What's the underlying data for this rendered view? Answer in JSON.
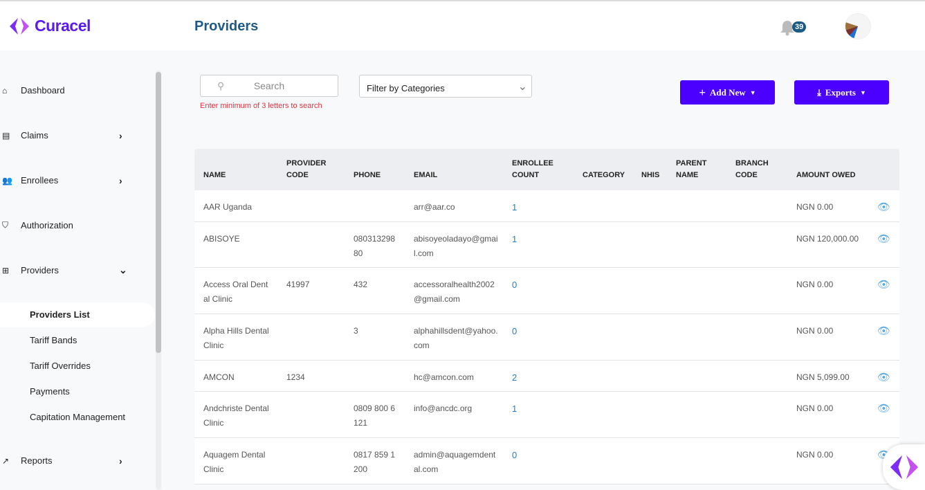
{
  "brand": {
    "name": "Curacel",
    "accent": "#4b00ff"
  },
  "header": {
    "title": "Providers",
    "notification_count": "39"
  },
  "sidebar": {
    "items": [
      {
        "label": "Dashboard",
        "icon": "home-icon"
      },
      {
        "label": "Claims",
        "icon": "clipboard-icon"
      },
      {
        "label": "Enrollees",
        "icon": "users-icon"
      },
      {
        "label": "Authorization",
        "icon": "shield-icon"
      },
      {
        "label": "Providers",
        "icon": "hospital-icon"
      },
      {
        "label": "Reports",
        "icon": "trend-icon"
      }
    ],
    "sub_items": [
      "Providers List",
      "Tariff Bands",
      "Tariff Overrides",
      "Payments",
      "Capitation Management"
    ]
  },
  "toolbar": {
    "search_placeholder": "Search",
    "search_hint": "Enter minimum of 3 letters to search",
    "filter_label": "Filter by Categories",
    "add_new": "Add New",
    "exports": "Exports"
  },
  "table": {
    "columns": [
      "NAME",
      "PROVIDER CODE",
      "PHONE",
      "EMAIL",
      "ENROLLEE COUNT",
      "CATEGORY",
      "NHIS",
      "PARENT NAME",
      "BRANCH CODE",
      "AMOUNT OWED"
    ],
    "rows": [
      {
        "name": "AAR Uganda",
        "code": "",
        "phone": "",
        "email": "arr@aar.co",
        "count": "1",
        "amount": "NGN 0.00"
      },
      {
        "name": "ABISOYE",
        "code": "",
        "phone": "08031329880",
        "email": "abisoyeoladayo@gmail.com",
        "count": "1",
        "amount": "NGN 120,000.00"
      },
      {
        "name": "Access Oral Dental Clinic",
        "code": "41997",
        "phone": "432",
        "email": "accessoralhealth2002@gmail.com",
        "count": "0",
        "amount": "NGN 0.00"
      },
      {
        "name": "Alpha Hills Dental Clinic",
        "code": "",
        "phone": "3",
        "email": "alphahillsdent@yahoo.com",
        "count": "0",
        "amount": "NGN 0.00"
      },
      {
        "name": "AMCON",
        "code": "1234",
        "phone": "",
        "email": "hc@amcon.com",
        "count": "2",
        "amount": "NGN 5,099.00"
      },
      {
        "name": "Andchriste Dental Clinic",
        "code": "",
        "phone": "0809 800 6121",
        "email": "info@ancdc.org",
        "count": "1",
        "amount": "NGN 0.00"
      },
      {
        "name": "Aquagem Dental Clinic",
        "code": "",
        "phone": "0817 859 1200",
        "email": "admin@aquagemdental.com",
        "count": "0",
        "amount": "NGN 0.00"
      }
    ]
  }
}
